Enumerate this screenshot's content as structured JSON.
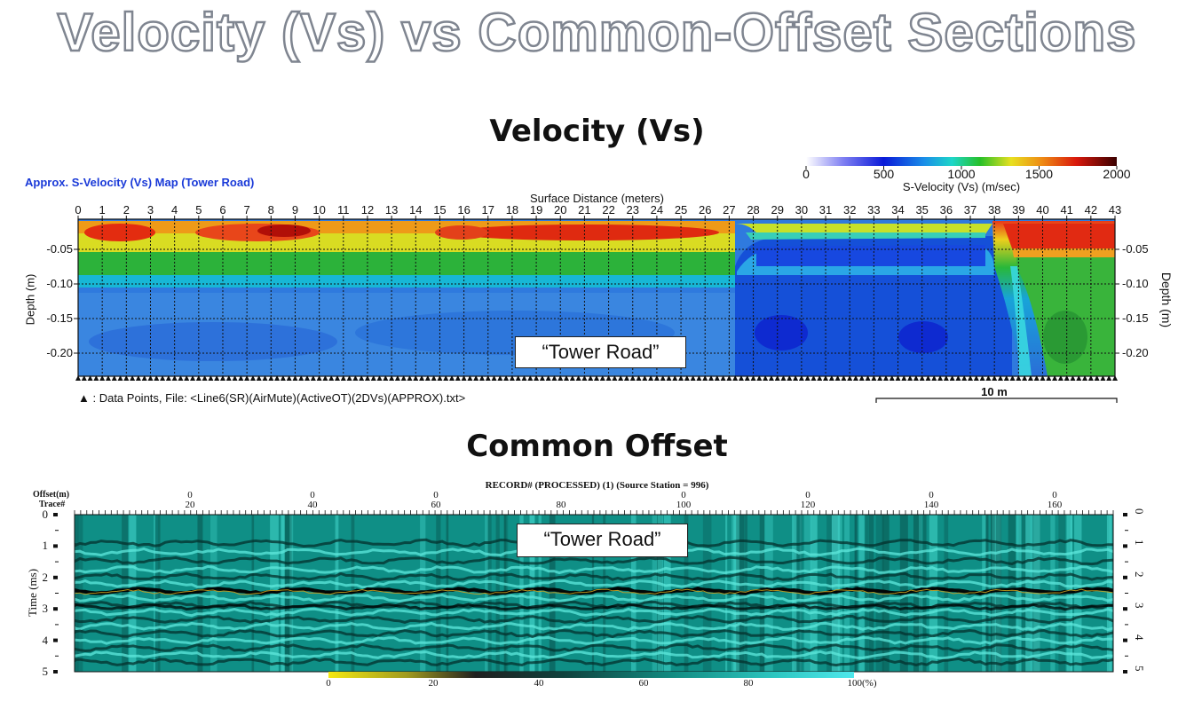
{
  "title": "Velocity (Vs) vs Common-Offset Sections",
  "velocity_section": {
    "title": "Velocity (Vs)",
    "map_label": "Approx. S-Velocity (Vs) Map (Tower Road)",
    "x_axis_title": "Surface Distance (meters)",
    "x_ticks": [
      "0",
      "1",
      "2",
      "3",
      "4",
      "5",
      "6",
      "7",
      "8",
      "9",
      "10",
      "11",
      "12",
      "13",
      "14",
      "15",
      "16",
      "17",
      "18",
      "19",
      "20",
      "21",
      "22",
      "23",
      "24",
      "25",
      "26",
      "27",
      "28",
      "29",
      "30",
      "31",
      "32",
      "33",
      "34",
      "35",
      "36",
      "37",
      "38",
      "39",
      "40",
      "41",
      "42",
      "43"
    ],
    "y_axis_title": "Depth (m)",
    "y_ticks": [
      "-0.05",
      "-0.10",
      "-0.15",
      "-0.20"
    ],
    "colorbar_ticks": [
      "0",
      "500",
      "1000",
      "1500",
      "2000"
    ],
    "colorbar_title": "S-Velocity (Vs) (m/sec)",
    "footer_note": "▲ : Data Points,  File: <Line6(SR)(AirMute)(ActiveOT)(2DVs)(APPROX).txt>",
    "scale_bar": "10 m",
    "callout": "“Tower Road”",
    "colors": {
      "scale_blue": "#1a3ad8",
      "low": "#0a1aa8",
      "mid": "#1fbf3a",
      "high": "#d9210a"
    }
  },
  "common_offset_section": {
    "title": "Common Offset",
    "record_label": "RECORD# (PROCESSED) (1) (Source Station = 996)",
    "offset_label": "Offset(m)",
    "trace_label": "Trace#",
    "offset_ticks": [
      "0",
      "0",
      "0",
      "0",
      "0",
      "0",
      "0"
    ],
    "trace_ticks": [
      "20",
      "40",
      "60",
      "80",
      "100",
      "120",
      "140",
      "160"
    ],
    "y_axis_title": "Time (ms)",
    "y_ticks": [
      "0",
      "1",
      "2",
      "3",
      "4",
      "5"
    ],
    "colorbar_ticks": [
      "0",
      "20",
      "40",
      "60",
      "80",
      "100(%)"
    ],
    "callout": "“Tower Road”",
    "colors": {
      "background": "#0f8f86",
      "trace": "#5fe0d4"
    }
  }
}
